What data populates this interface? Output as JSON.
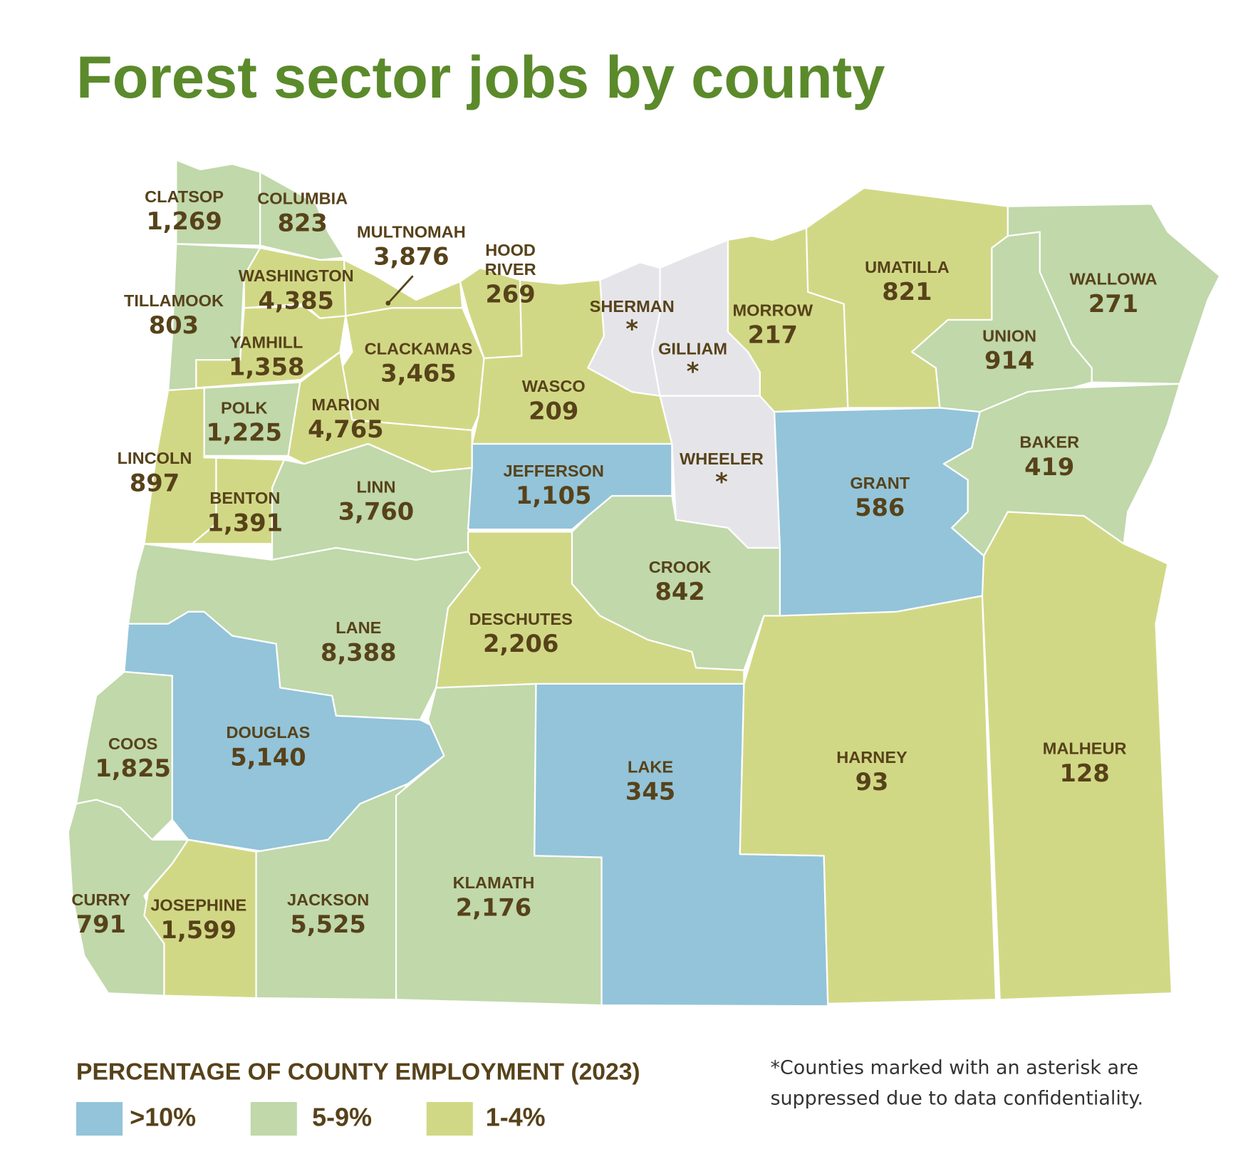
{
  "title": "Forest sector jobs by county",
  "colors": {
    "gt10": "#93c4d9",
    "5to9": "#c0d8aa",
    "1to4": "#d1d885",
    "suppressed": "#e5e5e9",
    "text": "#57421a",
    "title": "#5b8a2b"
  },
  "legend": {
    "heading": "PERCENTAGE OF COUNTY EMPLOYMENT (2023)",
    "items": [
      {
        "key": "gt10",
        "label": ">10%"
      },
      {
        "key": "5to9",
        "label": "5-9%"
      },
      {
        "key": "1to4",
        "label": "1-4%"
      }
    ]
  },
  "footnote": {
    "line1": "*Counties marked with an asterisk are",
    "line2": "suppressed due to data confidentiality."
  },
  "counties": [
    {
      "name": "CLATSOP",
      "jobs": "1,269",
      "share": "5to9"
    },
    {
      "name": "COLUMBIA",
      "jobs": "823",
      "share": "5to9"
    },
    {
      "name": "TILLAMOOK",
      "jobs": "803",
      "share": "5to9"
    },
    {
      "name": "WASHINGTON",
      "jobs": "4,385",
      "share": "1to4"
    },
    {
      "name": "MULTNOMAH",
      "jobs": "3,876",
      "share": "1to4"
    },
    {
      "name": "HOOD RIVER",
      "jobs": "269",
      "share": "1to4"
    },
    {
      "name": "CLACKAMAS",
      "jobs": "3,465",
      "share": "1to4"
    },
    {
      "name": "YAMHILL",
      "jobs": "1,358",
      "share": "1to4"
    },
    {
      "name": "POLK",
      "jobs": "1,225",
      "share": "5to9"
    },
    {
      "name": "MARION",
      "jobs": "4,765",
      "share": "1to4"
    },
    {
      "name": "LINCOLN",
      "jobs": "897",
      "share": "1to4"
    },
    {
      "name": "BENTON",
      "jobs": "1,391",
      "share": "1to4"
    },
    {
      "name": "LINN",
      "jobs": "3,760",
      "share": "5to9"
    },
    {
      "name": "LANE",
      "jobs": "8,388",
      "share": "5to9"
    },
    {
      "name": "DOUGLAS",
      "jobs": "5,140",
      "share": "gt10"
    },
    {
      "name": "COOS",
      "jobs": "1,825",
      "share": "5to9"
    },
    {
      "name": "CURRY",
      "jobs": "791",
      "share": "5to9"
    },
    {
      "name": "JOSEPHINE",
      "jobs": "1,599",
      "share": "1to4"
    },
    {
      "name": "JACKSON",
      "jobs": "5,525",
      "share": "5to9"
    },
    {
      "name": "KLAMATH",
      "jobs": "2,176",
      "share": "5to9"
    },
    {
      "name": "LAKE",
      "jobs": "345",
      "share": "gt10"
    },
    {
      "name": "HARNEY",
      "jobs": "93",
      "share": "1to4"
    },
    {
      "name": "MALHEUR",
      "jobs": "128",
      "share": "1to4"
    },
    {
      "name": "DESCHUTES",
      "jobs": "2,206",
      "share": "1to4"
    },
    {
      "name": "CROOK",
      "jobs": "842",
      "share": "5to9"
    },
    {
      "name": "JEFFERSON",
      "jobs": "1,105",
      "share": "gt10"
    },
    {
      "name": "WASCO",
      "jobs": "209",
      "share": "1to4"
    },
    {
      "name": "SHERMAN",
      "jobs": "*",
      "share": "suppressed"
    },
    {
      "name": "GILLIAM",
      "jobs": "*",
      "share": "suppressed"
    },
    {
      "name": "WHEELER",
      "jobs": "*",
      "share": "suppressed"
    },
    {
      "name": "MORROW",
      "jobs": "217",
      "share": "1to4"
    },
    {
      "name": "UMATILLA",
      "jobs": "821",
      "share": "1to4"
    },
    {
      "name": "UNION",
      "jobs": "914",
      "share": "5to9"
    },
    {
      "name": "WALLOWA",
      "jobs": "271",
      "share": "5to9"
    },
    {
      "name": "GRANT",
      "jobs": "586",
      "share": "gt10"
    },
    {
      "name": "BAKER",
      "jobs": "419",
      "share": "5to9"
    }
  ]
}
